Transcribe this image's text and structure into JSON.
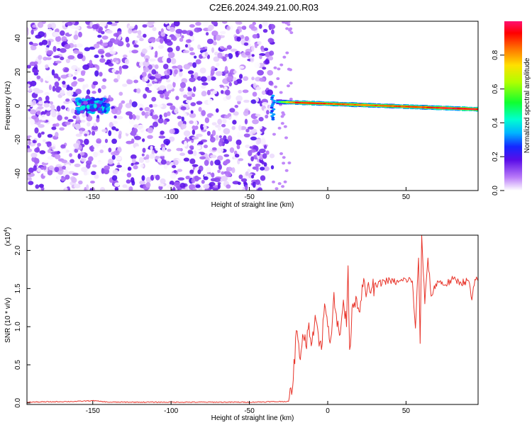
{
  "title": "C2E6.2024.349.21.00.R03",
  "chart_data": [
    {
      "type": "heatmap",
      "xlabel": "Height of straight line (km)",
      "ylabel": "Frequency (Hz)",
      "xlim": [
        -192,
        96
      ],
      "ylim": [
        -50,
        50
      ],
      "x_ticks": [
        -150,
        -100,
        -50,
        0,
        50
      ],
      "x_tick_labels": [
        "-150",
        "-100",
        "-50",
        "0",
        "50"
      ],
      "y_ticks": [
        -40,
        -20,
        0,
        20,
        40
      ],
      "y_tick_labels": [
        "-40",
        "-20",
        "0",
        "20",
        "40"
      ],
      "colorbar": {
        "label": "Normalized spectral amplitude",
        "range": [
          0,
          1
        ],
        "ticks": [
          0.0,
          0.2,
          0.4,
          0.6,
          0.8
        ],
        "tick_labels": [
          "0.0",
          "0.2",
          "0.4",
          "0.6",
          "0.8"
        ]
      },
      "features": {
        "noise_region_x": [
          -192,
          -35
        ],
        "noise_gap_x": [
          -132,
          -128
        ],
        "cluster_x": [
          -160,
          -140
        ],
        "cluster_amplitude": 0.3,
        "signal_start_x": -35,
        "signal_end_x": 96,
        "signal_freq_at_start": 2.5,
        "signal_freq_at_end": -2,
        "signal_amplitude_profile": [
          {
            "x": -35,
            "amp": 0.2
          },
          {
            "x": -30,
            "amp": 0.55
          },
          {
            "x": -20,
            "amp": 0.95
          },
          {
            "x": 0,
            "amp": 0.9
          },
          {
            "x": 20,
            "amp": 0.85
          },
          {
            "x": 50,
            "amp": 0.9
          },
          {
            "x": 96,
            "amp": 1.0
          }
        ]
      }
    },
    {
      "type": "line",
      "xlabel": "Height of straight line (km)",
      "ylabel": "SNR (10 * v/v)",
      "y_multiplier": "(x10",
      "y_multiplier_exp": "4",
      "y_multiplier_close": ")",
      "xlim": [
        -192,
        96
      ],
      "ylim": [
        -0.02,
        2.2
      ],
      "x_ticks": [
        -150,
        -100,
        -50,
        0,
        50
      ],
      "x_tick_labels": [
        "-150",
        "-100",
        "-50",
        "0",
        "50"
      ],
      "y_ticks": [
        0.0,
        0.5,
        1.0,
        1.5,
        2.0
      ],
      "y_tick_labels": [
        "0.0",
        "0.5",
        "1.0",
        "1.5",
        "2.0"
      ],
      "series": [
        {
          "color": "#e8342a",
          "x": [
            -192,
            -160,
            -150,
            -140,
            -100,
            -50,
            -25,
            -22,
            -20,
            -18,
            -16,
            -14,
            -12,
            -10,
            -8,
            -6,
            -4,
            -2,
            0,
            2,
            4,
            6,
            8,
            10,
            12,
            13,
            14,
            16,
            18,
            20,
            22,
            25,
            28,
            32,
            36,
            40,
            45,
            50,
            54,
            56,
            58,
            59,
            60,
            62,
            64,
            66,
            70,
            75,
            80,
            85,
            90,
            92,
            94,
            96
          ],
          "y": [
            0.01,
            0.02,
            0.03,
            0.01,
            0.01,
            0.01,
            0.02,
            0.3,
            0.95,
            0.6,
            0.9,
            0.75,
            1.05,
            0.8,
            1.15,
            0.9,
            0.7,
            1.3,
            1.0,
            0.85,
            1.45,
            1.0,
            0.9,
            1.35,
            1.0,
            1.8,
            0.7,
            1.3,
            1.4,
            1.2,
            1.55,
            1.45,
            1.5,
            1.55,
            1.6,
            1.6,
            1.58,
            1.62,
            1.6,
            0.98,
            1.9,
            0.78,
            2.2,
            1.3,
            1.9,
            1.4,
            1.6,
            1.55,
            1.62,
            1.58,
            1.6,
            1.35,
            1.62,
            1.6
          ]
        }
      ]
    }
  ]
}
